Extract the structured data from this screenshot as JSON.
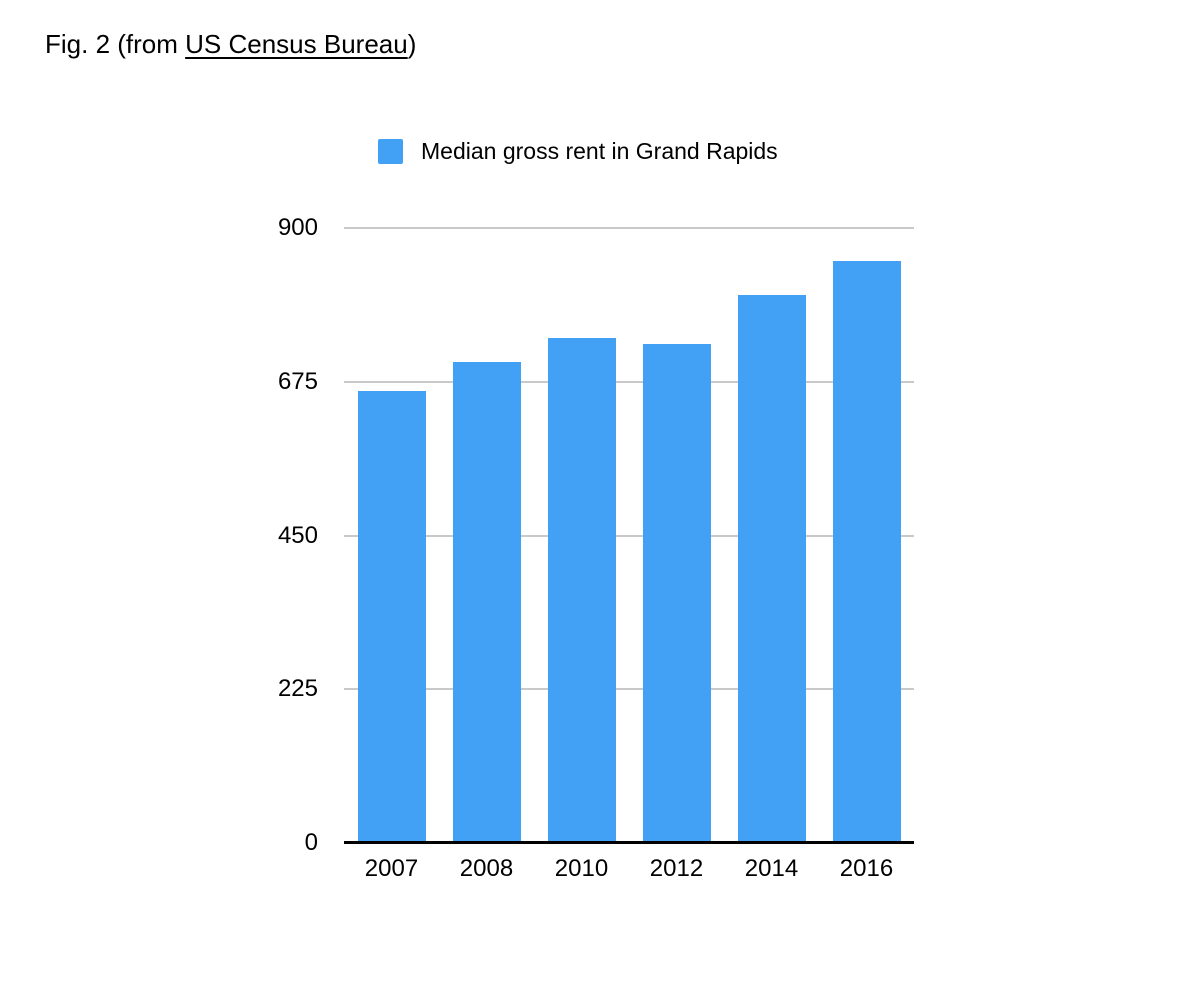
{
  "figure": {
    "title_prefix": "Fig. 2 (from ",
    "title_link": "US Census Bureau",
    "title_suffix": ")"
  },
  "chart_data": {
    "type": "bar",
    "title": "",
    "legend": "Median gross rent in Grand Rapids",
    "legend_position": "top",
    "categories": [
      "2007",
      "2008",
      "2010",
      "2012",
      "2014",
      "2016"
    ],
    "values": [
      660,
      703,
      737,
      729,
      800,
      850
    ],
    "xlabel": "",
    "ylabel": "",
    "ylim": [
      0,
      900
    ],
    "yticks": [
      900,
      675,
      450,
      225,
      0
    ],
    "grid": true,
    "colors": {
      "bar": "#42A1F5",
      "gridline": "#C9C9C9",
      "axis_line": "#000000",
      "text": "#000000"
    }
  }
}
